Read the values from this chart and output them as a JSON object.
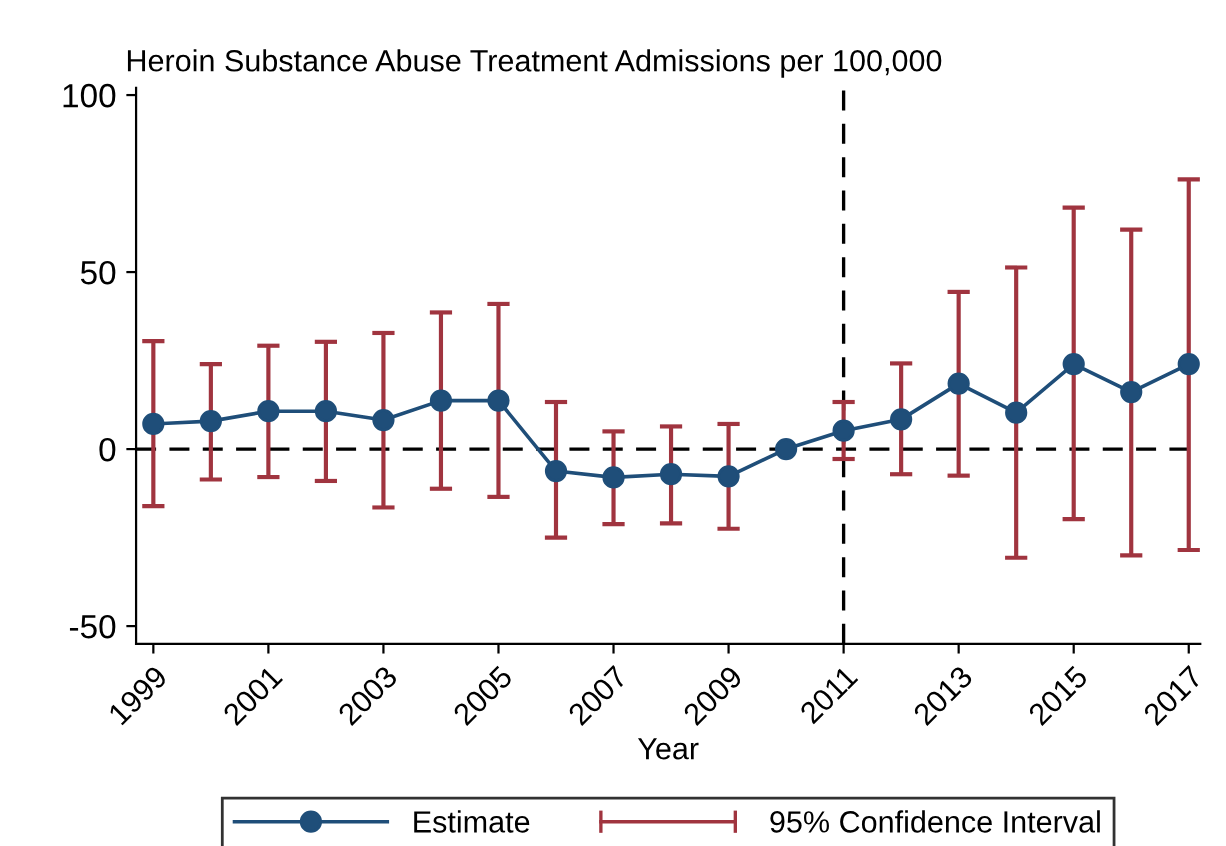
{
  "chart_data": {
    "type": "line",
    "title": "Heroin Substance Abuse Treatment Admissions per 100,000",
    "xlabel": "Year",
    "x": [
      1999,
      2000,
      2001,
      2002,
      2003,
      2004,
      2005,
      2006,
      2007,
      2008,
      2009,
      2010,
      2011,
      2012,
      2013,
      2014,
      2015,
      2016,
      2017
    ],
    "series": [
      {
        "name": "Estimate",
        "color": "#1f4e79",
        "marker": "circle",
        "values": [
          7.1,
          7.9,
          10.7,
          10.7,
          8.2,
          13.7,
          13.7,
          -6.2,
          -8,
          -7.1,
          -7.7,
          0,
          5.2,
          8.4,
          18.5,
          10.3,
          24,
          16.1,
          24
        ],
        "errors": [
          [
            -16.1,
            30.5
          ],
          [
            -8.6,
            24
          ],
          [
            -7.9,
            29.2
          ],
          [
            -9,
            30.3
          ],
          [
            -16.5,
            32.8
          ],
          [
            -11.2,
            38.6
          ],
          [
            -13.5,
            41
          ],
          [
            -25,
            13.3
          ],
          [
            -21.2,
            5
          ],
          [
            -21,
            6.4
          ],
          [
            -22.5,
            7.1
          ],
          null,
          [
            -2.8,
            13.3
          ],
          [
            -7.1,
            24.2
          ],
          [
            -7.5,
            44.4
          ],
          [
            -30.7,
            51.3
          ],
          [
            -19.8,
            68.2
          ],
          [
            -30,
            62
          ],
          [
            -28.5,
            76.2
          ]
        ]
      }
    ],
    "annotations": [
      "95% Confidence Interval"
    ],
    "xlim": [
      1998.7,
      2017.2
    ],
    "xticks": [
      1999,
      2001,
      2003,
      2005,
      2007,
      2009,
      2011,
      2013,
      2015,
      2017
    ],
    "ylim": [
      -55,
      102
    ],
    "yticks": [
      -50,
      0,
      50,
      100
    ],
    "ref_lines": [
      {
        "axis": "y",
        "value": 0,
        "color": "#000000",
        "line_style": "dashed"
      },
      {
        "axis": "x",
        "value": 2011,
        "color": "#000000",
        "line_style": "dashed"
      }
    ],
    "grid": false,
    "legend": "bottom"
  }
}
